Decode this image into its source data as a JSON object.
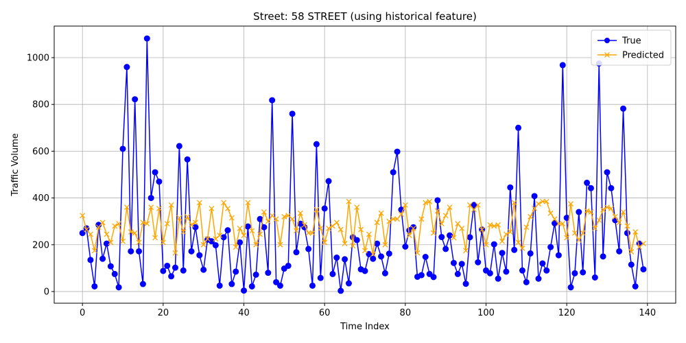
{
  "chart_data": {
    "type": "line",
    "title": "Street: 58 STREET (using historical feature)",
    "xlabel": "Time Index",
    "ylabel": "Traffic Volume",
    "xlim": [
      -7,
      147
    ],
    "ylim": [
      -50,
      1135
    ],
    "xticks": [
      0,
      20,
      40,
      60,
      80,
      100,
      120,
      140
    ],
    "yticks": [
      0,
      200,
      400,
      600,
      800,
      1000
    ],
    "grid": true,
    "legend_position": "top-right",
    "series": [
      {
        "name": "True",
        "color": "#0000ff",
        "marker": "circle",
        "values": [
          250,
          270,
          135,
          22,
          285,
          140,
          205,
          108,
          75,
          18,
          610,
          960,
          172,
          822,
          172,
          32,
          1082,
          400,
          510,
          470,
          88,
          110,
          65,
          102,
          622,
          90,
          565,
          172,
          275,
          155,
          93,
          222,
          215,
          198,
          25,
          232,
          262,
          32,
          85,
          210,
          4,
          278,
          22,
          72,
          310,
          275,
          80,
          818,
          40,
          25,
          98,
          110,
          760,
          168,
          290,
          275,
          182,
          25,
          630,
          58,
          355,
          472,
          75,
          145,
          3,
          138,
          35,
          232,
          220,
          95,
          88,
          160,
          140,
          205,
          150,
          78,
          162,
          510,
          598,
          350,
          192,
          262,
          275,
          63,
          70,
          148,
          75,
          62,
          390,
          233,
          182,
          240,
          122,
          75,
          118,
          33,
          232,
          370,
          125,
          265,
          90,
          78,
          202,
          55,
          165,
          85,
          445,
          178,
          700,
          90,
          40,
          163,
          408,
          55,
          120,
          90,
          190,
          292,
          155,
          968,
          315,
          18,
          78,
          340,
          82,
          465,
          442,
          60,
          975,
          150,
          510,
          442,
          305,
          172,
          782,
          250,
          115,
          22,
          205,
          95
        ]
      },
      {
        "name": "Predicted",
        "color": "#ffa500",
        "marker": "x",
        "values": [
          325,
          265,
          245,
          175,
          275,
          295,
          245,
          210,
          280,
          290,
          215,
          360,
          255,
          250,
          210,
          295,
          290,
          360,
          230,
          355,
          210,
          290,
          370,
          165,
          315,
          255,
          320,
          285,
          295,
          380,
          200,
          225,
          355,
          225,
          240,
          380,
          355,
          315,
          190,
          270,
          240,
          380,
          260,
          200,
          245,
          340,
          300,
          325,
          310,
          200,
          320,
          325,
          310,
          260,
          335,
          285,
          250,
          250,
          350,
          270,
          210,
          270,
          280,
          295,
          265,
          205,
          385,
          195,
          360,
          265,
          175,
          245,
          160,
          295,
          335,
          200,
          300,
          310,
          310,
          330,
          370,
          240,
          270,
          165,
          310,
          380,
          385,
          250,
          345,
          290,
          325,
          360,
          230,
          290,
          270,
          175,
          370,
          350,
          370,
          265,
          200,
          285,
          280,
          285,
          215,
          245,
          255,
          380,
          210,
          185,
          275,
          320,
          355,
          375,
          385,
          385,
          335,
          310,
          290,
          290,
          230,
          375,
          250,
          220,
          250,
          345,
          340,
          270,
          305,
          350,
          360,
          355,
          320,
          295,
          340,
          280,
          170,
          255,
          190,
          205
        ]
      }
    ]
  }
}
